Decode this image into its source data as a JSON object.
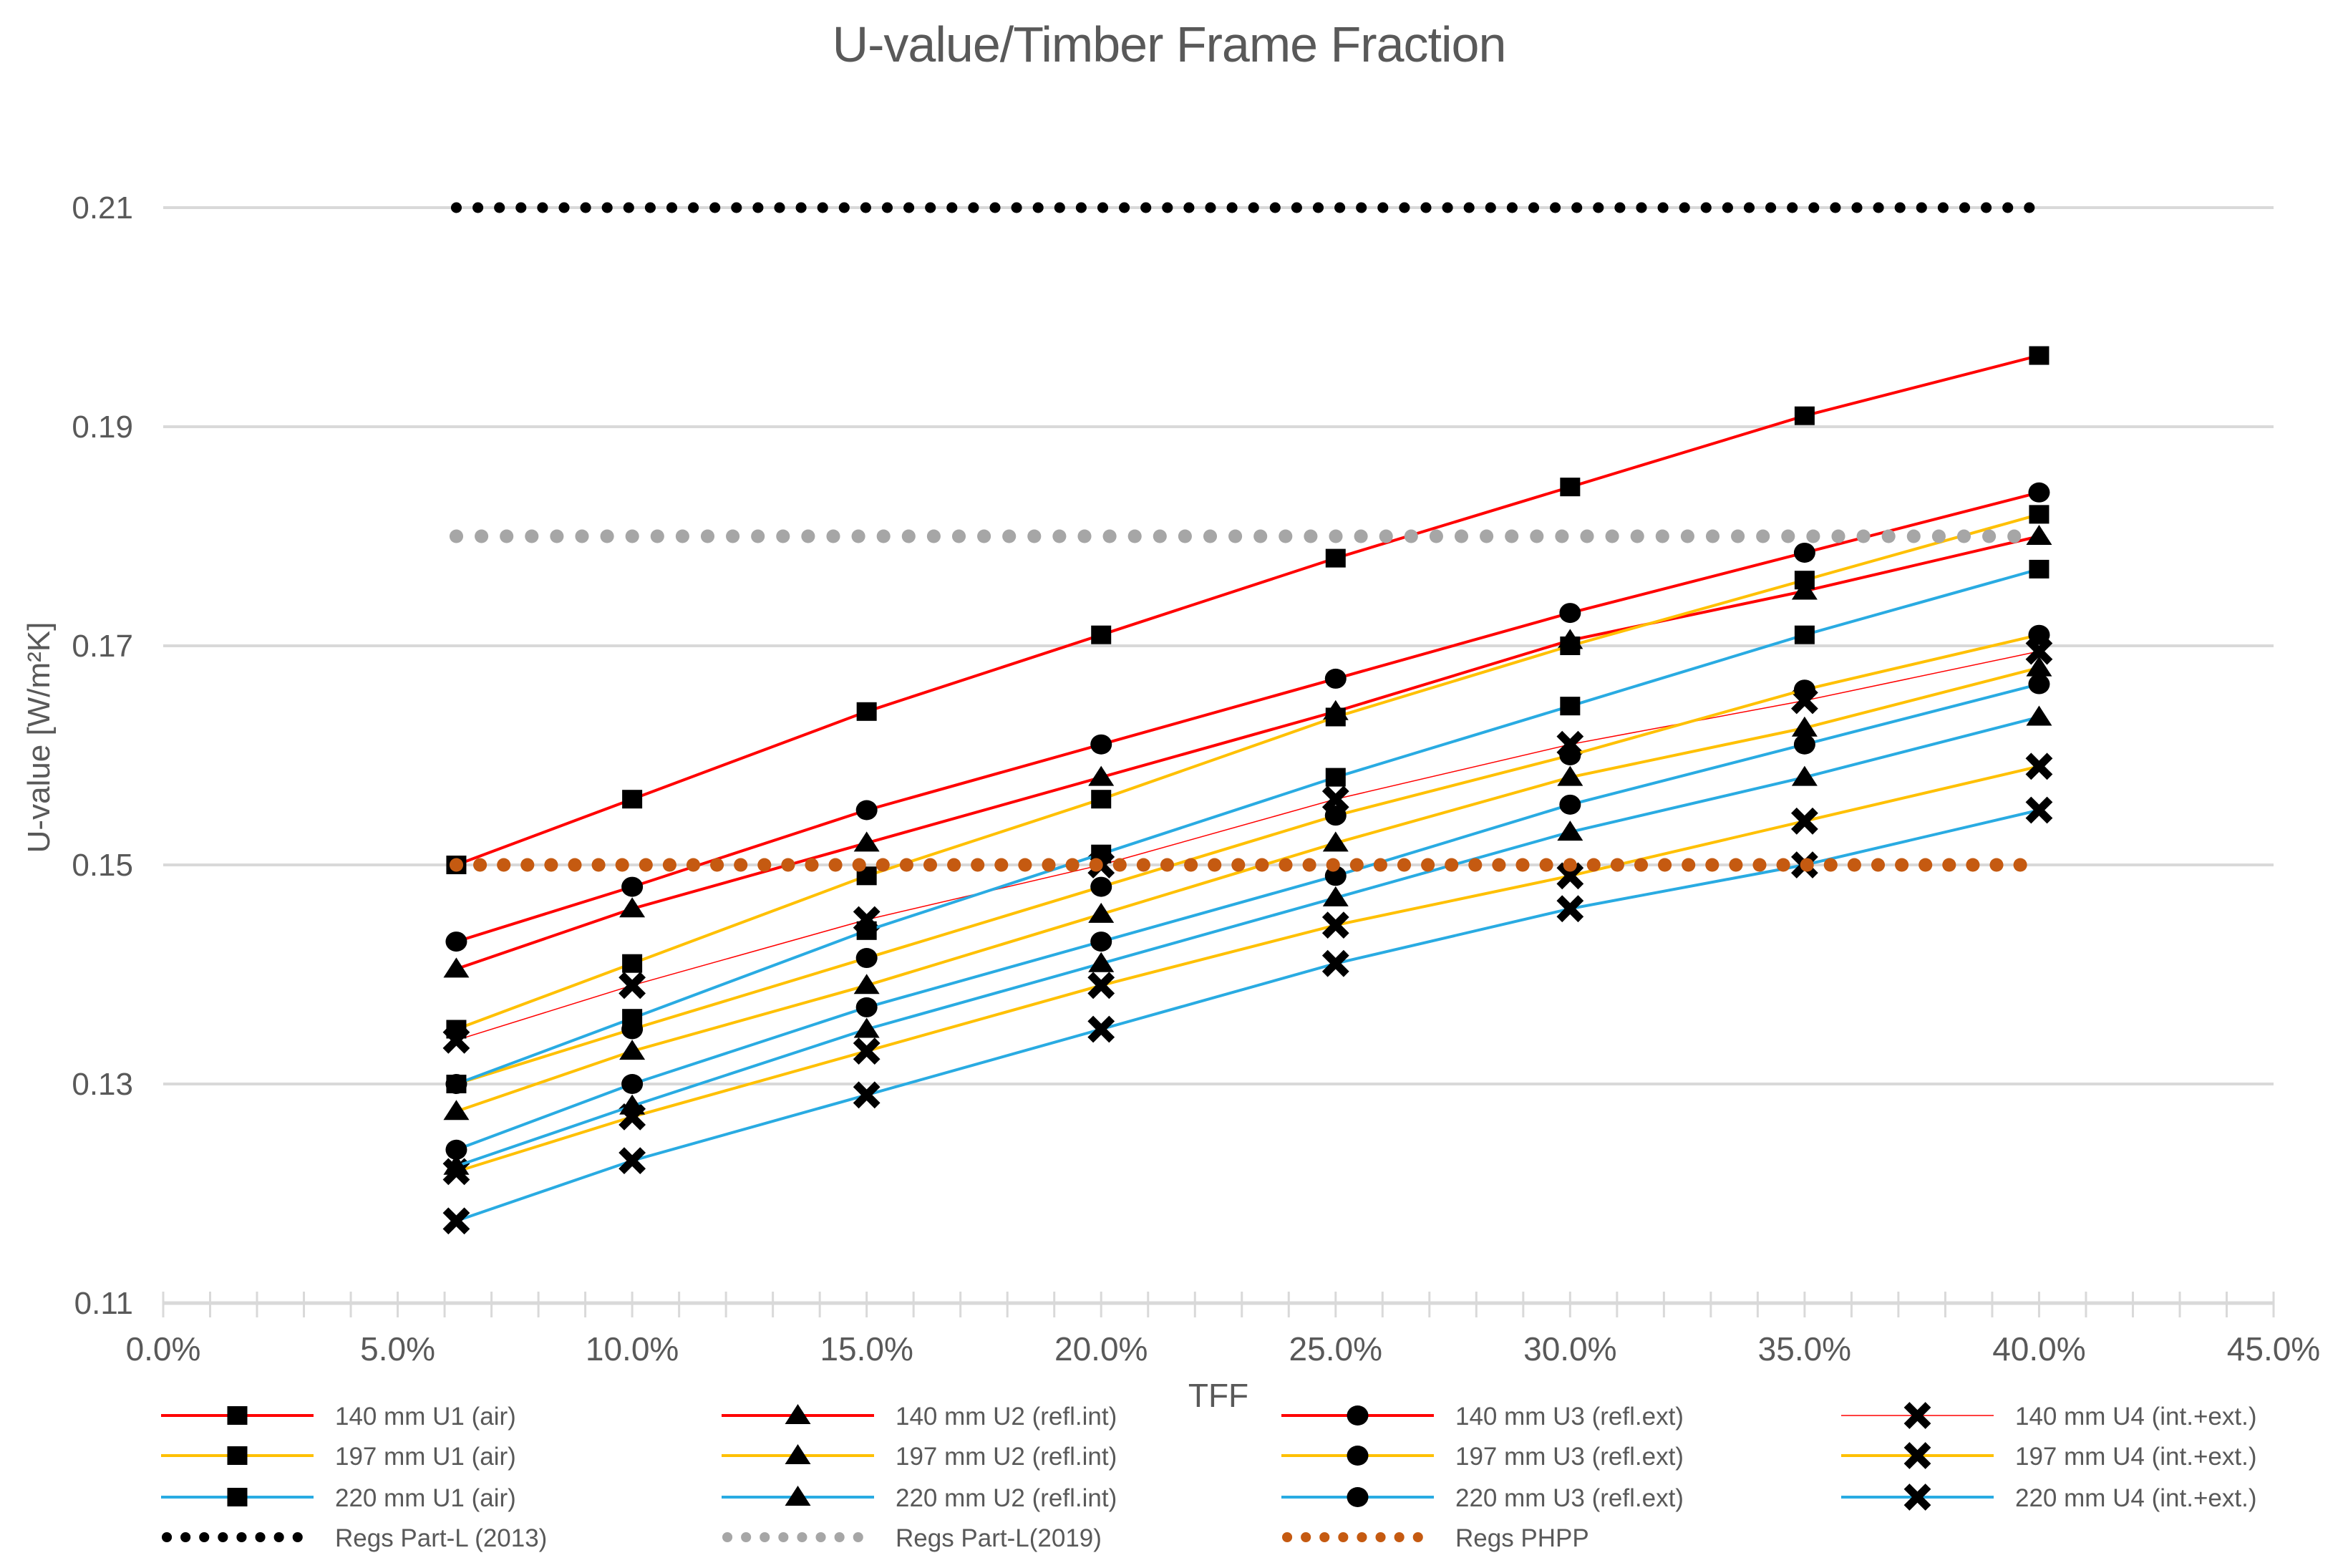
{
  "chart_data": {
    "type": "line",
    "title": "U-value/Timber Frame Fraction",
    "xlabel": "TFF",
    "ylabel": "U-value [W/m²K]",
    "xlim": [
      0,
      45
    ],
    "ylim": [
      0.11,
      0.21
    ],
    "grid": "horizontal-only",
    "legend_position": "bottom",
    "axis_text_color": "#595959",
    "grid_color": "#D9D9D9",
    "x_ticks": [
      {
        "p": 0,
        "label": "0.0%"
      },
      {
        "p": 5,
        "label": "5.0%"
      },
      {
        "p": 10,
        "label": "10.0%"
      },
      {
        "p": 15,
        "label": "15.0%"
      },
      {
        "p": 20,
        "label": "20.0%"
      },
      {
        "p": 25,
        "label": "25.0%"
      },
      {
        "p": 30,
        "label": "30.0%"
      },
      {
        "p": 35,
        "label": "35.0%"
      },
      {
        "p": 40,
        "label": "40.0%"
      },
      {
        "p": 45,
        "label": "45.0%"
      }
    ],
    "y_ticks": [
      {
        "v": 0.11,
        "label": "0.11"
      },
      {
        "v": 0.13,
        "label": "0.13"
      },
      {
        "v": 0.15,
        "label": "0.15"
      },
      {
        "v": 0.17,
        "label": "0.17"
      },
      {
        "v": 0.19,
        "label": "0.19"
      },
      {
        "v": 0.21,
        "label": "0.21"
      }
    ],
    "x": [
      6.25,
      10,
      15,
      20,
      25,
      30,
      35,
      40
    ],
    "series": [
      {
        "name": "140 mm U1 (air)",
        "color": "#FF0000",
        "marker": "square",
        "line_width": 4,
        "values": [
          0.15,
          0.156,
          0.164,
          0.171,
          0.178,
          0.1845,
          0.191,
          0.1965
        ]
      },
      {
        "name": "140 mm U2 (refl.int)",
        "color": "#FF0000",
        "marker": "triangle",
        "line_width": 4,
        "values": [
          0.1405,
          0.146,
          0.152,
          0.158,
          0.164,
          0.1705,
          0.175,
          0.18
        ]
      },
      {
        "name": "140 mm U3 (refl.ext)",
        "color": "#FF0000",
        "marker": "circle",
        "line_width": 4,
        "values": [
          0.143,
          0.148,
          0.155,
          0.161,
          0.167,
          0.173,
          0.1785,
          0.184
        ]
      },
      {
        "name": "140 mm U4 (int.+ext.)",
        "color": "#FF0000",
        "marker": "x",
        "line_width": 1.5,
        "values": [
          0.134,
          0.139,
          0.145,
          0.15,
          0.156,
          0.161,
          0.165,
          0.1695
        ]
      },
      {
        "name": "197 mm U1 (air)",
        "color": "#FFC000",
        "marker": "square",
        "line_width": 4,
        "values": [
          0.135,
          0.141,
          0.149,
          0.156,
          0.1635,
          0.17,
          0.176,
          0.182
        ]
      },
      {
        "name": "197 mm U2 (refl.int)",
        "color": "#FFC000",
        "marker": "triangle",
        "line_width": 4,
        "values": [
          0.1275,
          0.133,
          0.139,
          0.1455,
          0.152,
          0.158,
          0.1625,
          0.168
        ]
      },
      {
        "name": "197 mm U3 (refl.ext)",
        "color": "#FFC000",
        "marker": "circle",
        "line_width": 4,
        "values": [
          0.13,
          0.135,
          0.1415,
          0.148,
          0.1545,
          0.16,
          0.166,
          0.171
        ]
      },
      {
        "name": "197 mm U4 (int.+ext.)",
        "color": "#FFC000",
        "marker": "x",
        "line_width": 4,
        "values": [
          0.122,
          0.127,
          0.133,
          0.139,
          0.1445,
          0.149,
          0.154,
          0.159
        ]
      },
      {
        "name": "220 mm U1 (air)",
        "color": "#29ABE2",
        "marker": "square",
        "line_width": 4,
        "values": [
          0.13,
          0.136,
          0.144,
          0.151,
          0.158,
          0.1645,
          0.171,
          0.177
        ]
      },
      {
        "name": "220 mm U2 (refl.int)",
        "color": "#29ABE2",
        "marker": "triangle",
        "line_width": 4,
        "values": [
          0.1225,
          0.128,
          0.135,
          0.141,
          0.147,
          0.153,
          0.158,
          0.1635
        ]
      },
      {
        "name": "220 mm U3 (refl.ext)",
        "color": "#29ABE2",
        "marker": "circle",
        "line_width": 4,
        "values": [
          0.124,
          0.13,
          0.137,
          0.143,
          0.149,
          0.1555,
          0.161,
          0.1665
        ]
      },
      {
        "name": "220 mm U4 (int.+ext.)",
        "color": "#29ABE2",
        "marker": "x",
        "line_width": 4,
        "values": [
          0.1175,
          0.123,
          0.129,
          0.135,
          0.141,
          0.146,
          0.15,
          0.155
        ]
      }
    ],
    "ref_lines": [
      {
        "name": "Regs Part-L (2013)",
        "value": 0.21,
        "color": "#000000",
        "dot": 15,
        "gap": 30,
        "x_start": 6.25,
        "x_end": 40
      },
      {
        "name": "Regs Part-L(2019)",
        "value": 0.18,
        "color": "#A6A6A6",
        "dot": 19,
        "gap": 35,
        "x_start": 6.25,
        "x_end": 40
      },
      {
        "name": "Regs PHPP",
        "value": 0.15,
        "color": "#C55A11",
        "dot": 19,
        "gap": 33,
        "x_start": 6.25,
        "x_end": 40
      }
    ]
  }
}
